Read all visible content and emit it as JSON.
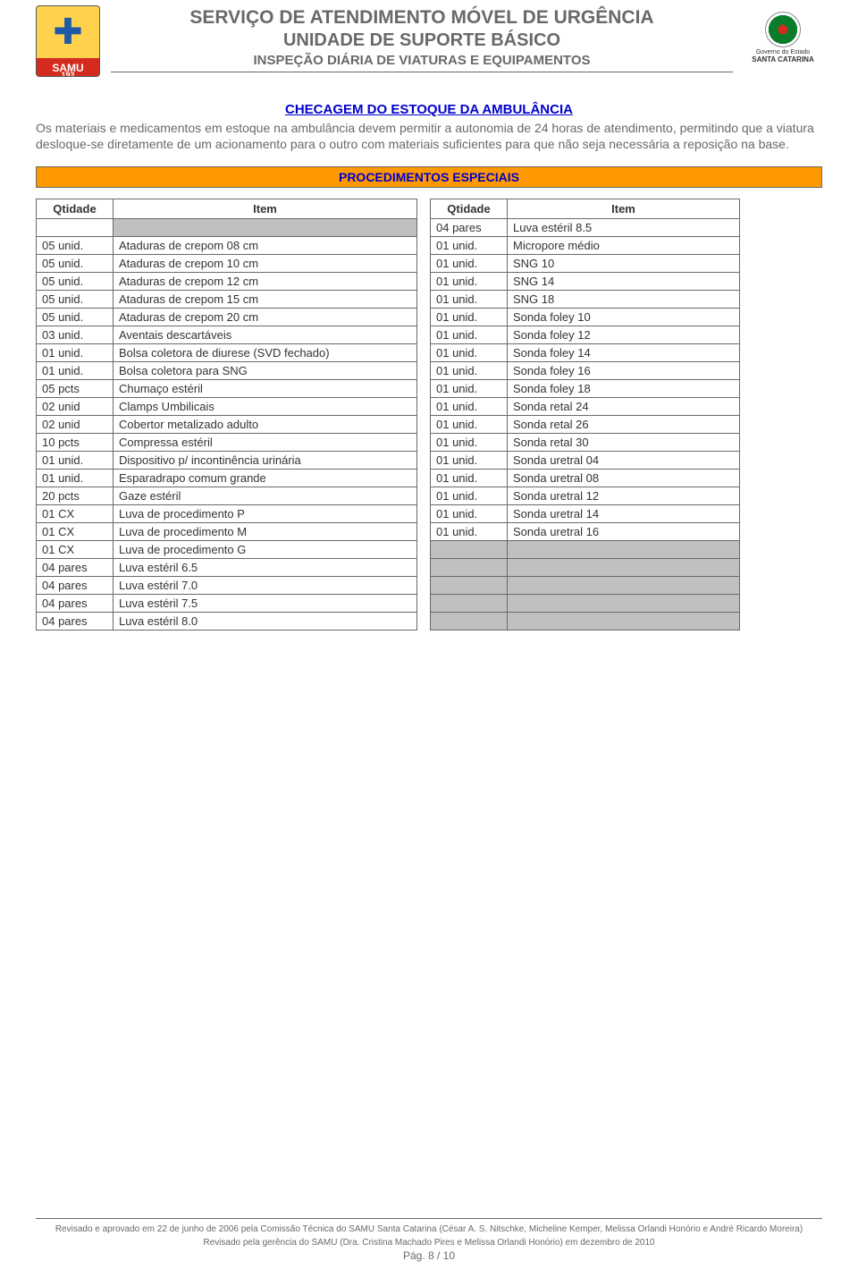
{
  "colors": {
    "text_muted": "#696969",
    "link_blue": "#0000cd",
    "banner_bg": "#ff9900",
    "grey_cell": "#c0c0c0",
    "border": "#696969",
    "samu_yellow": "#ffd24d",
    "samu_red": "#d52b1e",
    "body_bg": "#ffffff"
  },
  "header": {
    "samu_label": "SAMU",
    "samu_number": "192",
    "title1": "SERVIÇO DE ATENDIMENTO MÓVEL DE URGÊNCIA",
    "title2": "UNIDADE DE SUPORTE BÁSICO",
    "title3": "INSPEÇÃO DIÁRIA DE VIATURAS E EQUIPAMENTOS",
    "gov_small": "Governo do Estado",
    "gov_state": "SANTA CATARINA"
  },
  "section_title": "CHECAGEM  DO ESTOQUE DA AMBULÂNCIA",
  "intro": "Os materiais e medicamentos em estoque na ambulância devem permitir a autonomia de 24 horas de atendimento, permitindo que a viatura desloque-se diretamente de um acionamento para o outro com materiais suficientes para que não seja necessária a reposição na base.",
  "banner": "PROCEDIMENTOS ESPECIAIS",
  "table_headers": {
    "qty": "Qtidade",
    "item": "Item"
  },
  "left_rows": [
    {
      "qty": "",
      "item_grey": true,
      "item": ""
    },
    {
      "qty": "05 unid.",
      "item": "Ataduras de crepom 08 cm"
    },
    {
      "qty": "05 unid.",
      "item": "Ataduras de crepom 10 cm"
    },
    {
      "qty": "05 unid.",
      "item": "Ataduras de crepom 12 cm"
    },
    {
      "qty": "05 unid.",
      "item": "Ataduras de crepom 15 cm"
    },
    {
      "qty": "05 unid.",
      "item": "Ataduras de crepom 20 cm"
    },
    {
      "qty": "03 unid.",
      "item": "Aventais descartáveis"
    },
    {
      "qty": "01 unid.",
      "item": "Bolsa coletora de diurese (SVD fechado)"
    },
    {
      "qty": "01 unid.",
      "item": "Bolsa coletora para SNG"
    },
    {
      "qty": "05 pcts",
      "item": "Chumaço estéril"
    },
    {
      "qty": "02 unid",
      "item": "Clamps Umbilicais"
    },
    {
      "qty": "02 unid",
      "item": "Cobertor metalizado adulto"
    },
    {
      "qty": "10 pcts",
      "item": "Compressa estéril"
    },
    {
      "qty": "01 unid.",
      "item": "Dispositivo p/ incontinência urinária"
    },
    {
      "qty": "01 unid.",
      "item": "Esparadrapo comum grande"
    },
    {
      "qty": "20 pcts",
      "item": "Gaze estéril"
    },
    {
      "qty": "01 CX",
      "item": "Luva de procedimento P"
    },
    {
      "qty": "01 CX",
      "item": "Luva de procedimento M"
    },
    {
      "qty": "01 CX",
      "item": "Luva de procedimento G"
    },
    {
      "qty": "04 pares",
      "item": "Luva estéril 6.5"
    },
    {
      "qty": "04 pares",
      "item": "Luva estéril 7.0"
    },
    {
      "qty": "04 pares",
      "item": "Luva estéril 7.5"
    },
    {
      "qty": "04 pares",
      "item": "Luva estéril 8.0"
    }
  ],
  "right_rows": [
    {
      "qty": "04 pares",
      "item": "Luva estéril 8.5"
    },
    {
      "qty": "01 unid.",
      "item": "Micropore médio"
    },
    {
      "qty": "01 unid.",
      "item": "SNG 10"
    },
    {
      "qty": "01 unid.",
      "item": "SNG 14"
    },
    {
      "qty": "01 unid.",
      "item": "SNG 18"
    },
    {
      "qty": "01 unid.",
      "item": "Sonda foley 10"
    },
    {
      "qty": "01 unid.",
      "item": "Sonda foley 12"
    },
    {
      "qty": "01 unid.",
      "item": "Sonda foley 14"
    },
    {
      "qty": "01 unid.",
      "item": "Sonda foley 16"
    },
    {
      "qty": "01 unid.",
      "item": "Sonda foley 18"
    },
    {
      "qty": "01 unid.",
      "item": "Sonda retal 24"
    },
    {
      "qty": "01 unid.",
      "item": "Sonda retal 26"
    },
    {
      "qty": "01 unid.",
      "item": "Sonda retal 30"
    },
    {
      "qty": "01 unid.",
      "item": "Sonda uretral 04"
    },
    {
      "qty": "01 unid.",
      "item": "Sonda uretral 08"
    },
    {
      "qty": "01 unid.",
      "item": "Sonda uretral 12"
    },
    {
      "qty": "01 unid.",
      "item": "Sonda uretral 14"
    },
    {
      "qty": "01 unid.",
      "item": "Sonda uretral 16"
    },
    {
      "qty_grey": true,
      "qty": "",
      "item_grey": true,
      "item": ""
    },
    {
      "qty_grey": true,
      "qty": "",
      "item_grey": true,
      "item": ""
    },
    {
      "qty_grey": true,
      "qty": "",
      "item_grey": true,
      "item": ""
    },
    {
      "qty_grey": true,
      "qty": "",
      "item_grey": true,
      "item": ""
    },
    {
      "qty_grey": true,
      "qty": "",
      "item_grey": true,
      "item": ""
    }
  ],
  "footer": {
    "line1": "Revisado e aprovado em 22 de junho de 2006 pela Comissão Técnica do SAMU Santa Catarina (César A. S. Nitschke, Micheline Kemper, Melissa  Orlandi Honório  e André Ricardo Moreira)",
    "line2": "Revisado pela gerência do SAMU (Dra. Cristina Machado Pires e Melissa Orlandi Honório) em dezembro de 2010",
    "page_label": "Pág.",
    "page_num": "8 / 10"
  }
}
